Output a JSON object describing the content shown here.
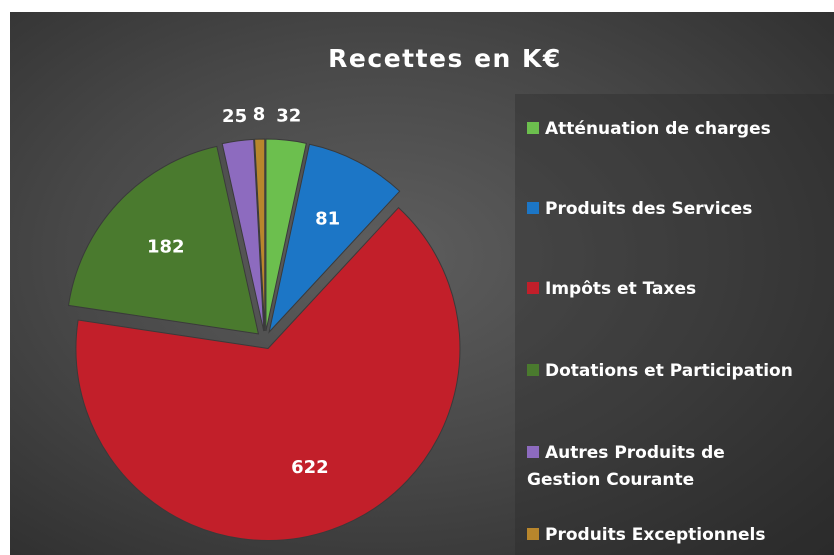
{
  "chart_data": {
    "type": "pie",
    "title": "Recettes en K€",
    "categories": [
      "Atténuation de charges",
      "Produits des Services",
      "Impôts et Taxes",
      "Dotations et Participation",
      "Autres Produits de Gestion Courante",
      "Produits Exceptionnels"
    ],
    "values": [
      32,
      81,
      622,
      182,
      25,
      8
    ],
    "colors": [
      "#6cbf4e",
      "#1c76c6",
      "#c21f2a",
      "#4a7a2e",
      "#8d6bbf",
      "#b8862c"
    ],
    "legend": "right"
  }
}
